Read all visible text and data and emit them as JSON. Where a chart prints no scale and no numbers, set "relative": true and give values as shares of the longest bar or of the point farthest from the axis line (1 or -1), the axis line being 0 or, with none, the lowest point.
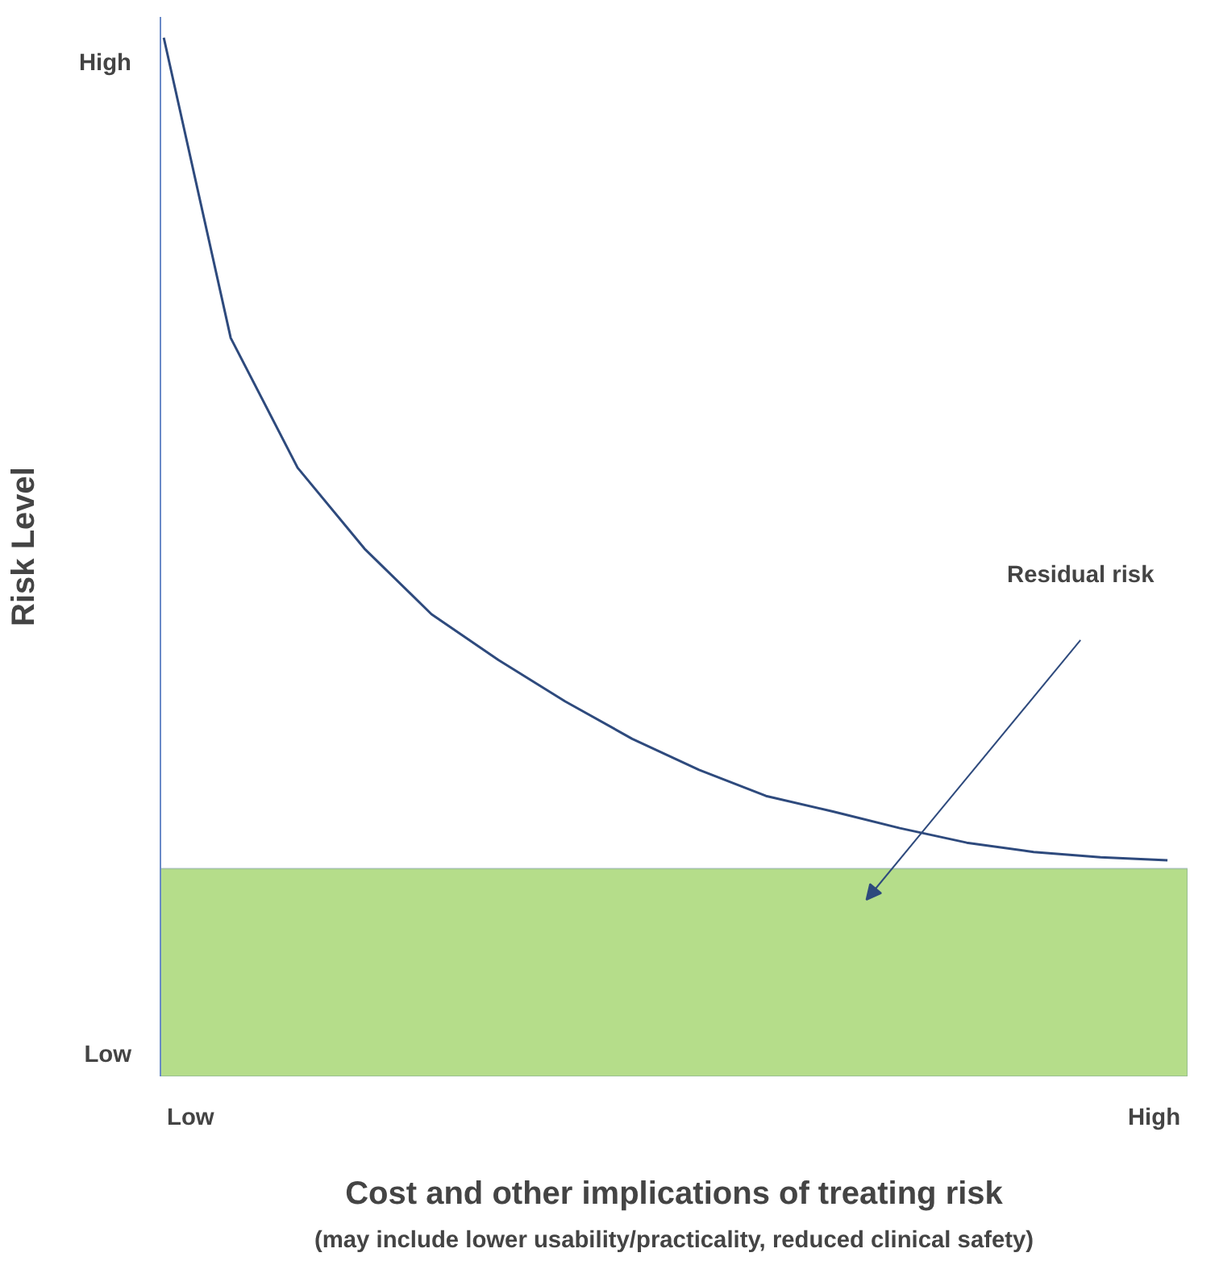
{
  "chart_data": {
    "type": "line",
    "relative": true,
    "xlabel": "Cost and other implications of treating risk",
    "ylabel": "Risk Level",
    "categories": [
      null,
      null,
      null,
      null,
      null,
      null,
      null,
      null,
      null,
      null,
      null,
      null,
      null,
      null,
      null,
      null
    ],
    "series": [
      {
        "color": "#2e4a7d",
        "values": [
          1,
          0.711,
          0.586,
          0.508,
          0.445,
          0.401,
          0.361,
          0.325,
          0.295,
          0.27,
          0.255,
          0.239,
          0.225,
          0.216,
          0.211,
          0.208
        ]
      }
    ],
    "bands": [
      {
        "axis": "y",
        "from": 0,
        "to": 0.2,
        "color": "#b5dd8a"
      }
    ],
    "annotations": [
      "High",
      "Low",
      "Low",
      "High",
      "Residual risk",
      "(may include lower usability/practicality, reduced clinical safety)"
    ],
    "grid": false,
    "marker": "none",
    "line_style": "solid"
  }
}
